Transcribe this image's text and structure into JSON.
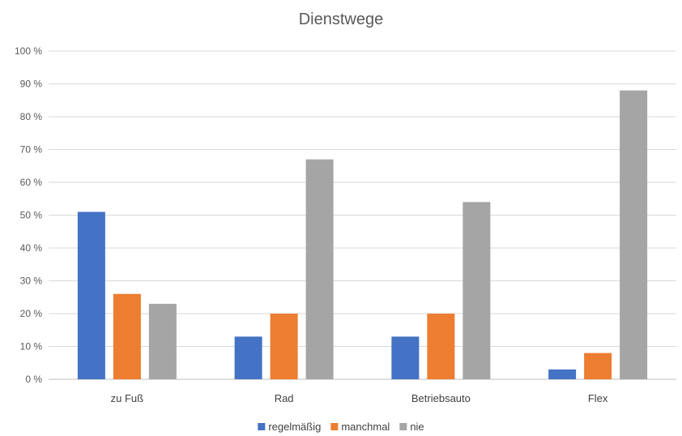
{
  "chart_data": {
    "type": "bar",
    "title": "Dienstwege",
    "xlabel": "",
    "ylabel": "",
    "ylim": [
      0,
      100
    ],
    "yticks": [
      "0 %",
      "10 %",
      "20 %",
      "30 %",
      "40 %",
      "50 %",
      "60 %",
      "70 %",
      "80 %",
      "90 %",
      "100 %"
    ],
    "categories": [
      "zu Fuß",
      "Rad",
      "Betriebsauto",
      "Flex"
    ],
    "series": [
      {
        "name": "regelmäßig",
        "color": "#4472C4",
        "values": [
          51,
          13,
          13,
          3
        ]
      },
      {
        "name": "manchmal",
        "color": "#ED7D31",
        "values": [
          26,
          20,
          20,
          8
        ]
      },
      {
        "name": "nie",
        "color": "#A5A5A5",
        "values": [
          23,
          67,
          54,
          88
        ]
      }
    ],
    "grid": true,
    "legend": "bottom"
  }
}
